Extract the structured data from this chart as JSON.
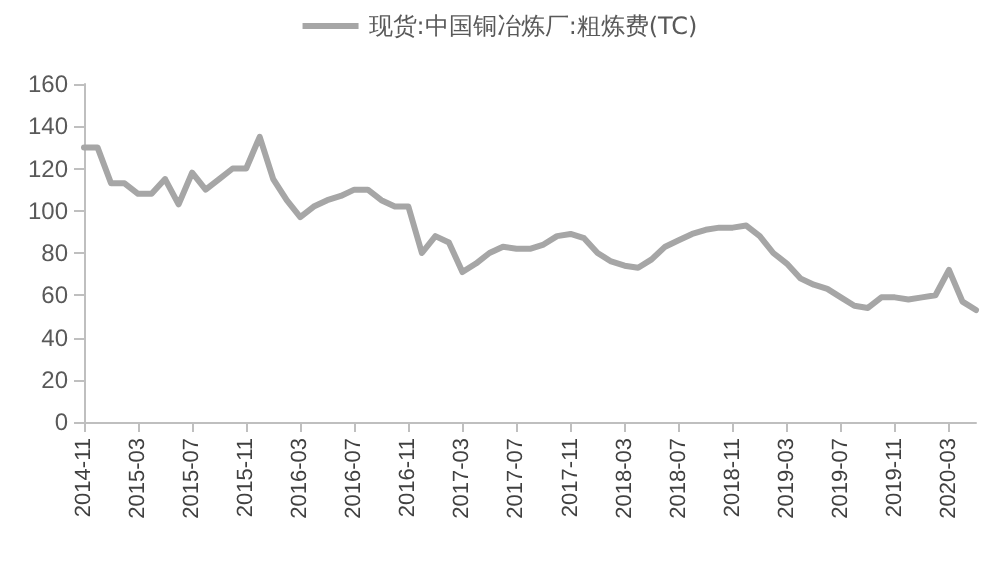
{
  "chart_data": {
    "type": "line",
    "categories": [
      "2014-11",
      null,
      null,
      null,
      "2015-03",
      null,
      null,
      null,
      "2015-07",
      null,
      null,
      null,
      "2015-11",
      null,
      null,
      null,
      "2016-03",
      null,
      null,
      null,
      "2016-07",
      null,
      null,
      null,
      "2016-11",
      null,
      null,
      null,
      "2017-03",
      null,
      null,
      null,
      "2017-07",
      null,
      null,
      null,
      "2017-11",
      null,
      null,
      null,
      "2018-03",
      null,
      null,
      null,
      "2018-07",
      null,
      null,
      null,
      "2018-11",
      null,
      null,
      null,
      "2019-03",
      null,
      null,
      null,
      "2019-07",
      null,
      null,
      null,
      "2019-11",
      null,
      null,
      null,
      "2020-03",
      null,
      null
    ],
    "series": [
      {
        "name": "现货:中国铜冶炼厂:粗炼费(TC)",
        "color": "#a6a6a6",
        "values": [
          130,
          130,
          113,
          113,
          108,
          108,
          115,
          103,
          118,
          110,
          115,
          120,
          120,
          135,
          115,
          105,
          97,
          102,
          105,
          107,
          110,
          110,
          105,
          102,
          102,
          80,
          88,
          85,
          71,
          75,
          80,
          83,
          82,
          82,
          84,
          88,
          89,
          87,
          80,
          76,
          74,
          73,
          77,
          83,
          86,
          89,
          91,
          92,
          92,
          93,
          88,
          80,
          75,
          68,
          65,
          63,
          59,
          55,
          54,
          59,
          59,
          58,
          59,
          60,
          72,
          57,
          53
        ]
      }
    ],
    "ylim": [
      0,
      160
    ],
    "yticks": [
      0,
      20,
      40,
      60,
      80,
      100,
      120,
      140,
      160
    ],
    "grid": false,
    "legend": "top",
    "marker": "none",
    "line_style": "solid"
  }
}
